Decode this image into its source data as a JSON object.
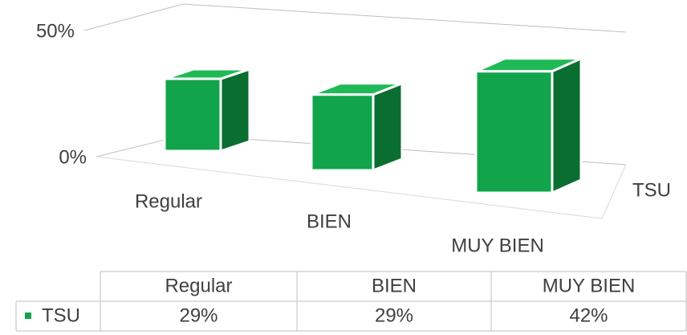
{
  "chart_data": {
    "type": "bar3d",
    "categories": [
      "Regular",
      "BIEN",
      "MUY BIEN"
    ],
    "series": [
      {
        "name": "TSU",
        "color": "#12a44b",
        "values": [
          29,
          29,
          42
        ],
        "value_labels": [
          "29%",
          "29%",
          "42%"
        ]
      }
    ],
    "ylim": [
      0,
      50
    ],
    "yticks": [
      {
        "value": 0,
        "label": "0%"
      },
      {
        "value": 50,
        "label": "50%"
      }
    ],
    "grid": true,
    "data_table": true
  }
}
